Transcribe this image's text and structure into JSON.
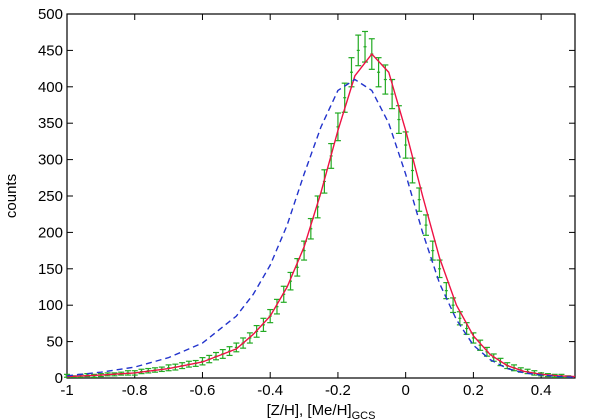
{
  "chart_data": {
    "type": "scatter",
    "xlabel": "[Z/H], [Me/H]",
    "xlabel_subscript": "GCS",
    "ylabel": "counts",
    "xlim": [
      -1,
      0.5
    ],
    "ylim": [
      0,
      500
    ],
    "xticks": [
      -1,
      -0.8,
      -0.6,
      -0.4,
      -0.2,
      0,
      0.2,
      0.4
    ],
    "yticks": [
      0,
      50,
      100,
      150,
      200,
      250,
      300,
      350,
      400,
      450,
      500
    ],
    "series": [
      {
        "style": "errorbar",
        "color": "#22aa22",
        "x": [
          -1,
          -0.98,
          -0.96,
          -0.94,
          -0.92,
          -0.9,
          -0.88,
          -0.86,
          -0.84,
          -0.82,
          -0.8,
          -0.78,
          -0.76,
          -0.74,
          -0.72,
          -0.7,
          -0.68,
          -0.66,
          -0.64,
          -0.62,
          -0.6,
          -0.58,
          -0.56,
          -0.54,
          -0.52,
          -0.5,
          -0.48,
          -0.46,
          -0.44,
          -0.42,
          -0.4,
          -0.38,
          -0.36,
          -0.34,
          -0.32,
          -0.3,
          -0.28,
          -0.26,
          -0.24,
          -0.22,
          -0.2,
          -0.18,
          -0.16,
          -0.14,
          -0.12,
          -0.1,
          -0.08,
          -0.06,
          -0.04,
          -0.02,
          0,
          0.02,
          0.04,
          0.06,
          0.08,
          0.1,
          0.12,
          0.14,
          0.16,
          0.18,
          0.2,
          0.22,
          0.24,
          0.26,
          0.28,
          0.3,
          0.32,
          0.34,
          0.36,
          0.38,
          0.4,
          0.42,
          0.44,
          0.46,
          0.48
        ],
        "values": [
          3,
          2,
          3,
          4,
          3,
          4,
          5,
          5,
          6,
          7,
          7,
          9,
          10,
          11,
          12,
          14,
          15,
          17,
          19,
          20,
          23,
          26,
          30,
          33,
          37,
          42,
          48,
          55,
          64,
          73,
          85,
          98,
          115,
          133,
          152,
          175,
          205,
          235,
          270,
          305,
          345,
          385,
          420,
          450,
          455,
          445,
          420,
          410,
          390,
          355,
          320,
          285,
          245,
          210,
          175,
          150,
          120,
          100,
          82,
          68,
          55,
          45,
          36,
          28,
          22,
          17,
          14,
          11,
          9,
          7,
          5,
          4,
          3,
          3,
          2
        ],
        "errors": [
          2,
          1,
          2,
          2,
          2,
          2,
          2,
          2,
          2,
          3,
          3,
          3,
          3,
          3,
          3,
          4,
          4,
          4,
          4,
          4,
          5,
          5,
          5,
          6,
          6,
          6,
          7,
          7,
          8,
          9,
          9,
          10,
          11,
          12,
          12,
          13,
          14,
          15,
          16,
          17,
          19,
          20,
          20,
          21,
          21,
          21,
          20,
          20,
          20,
          19,
          18,
          17,
          16,
          14,
          13,
          12,
          11,
          10,
          9,
          8,
          7,
          7,
          6,
          5,
          5,
          4,
          4,
          3,
          3,
          3,
          2,
          2,
          2,
          2,
          1
        ]
      },
      {
        "style": "solid",
        "color": "#ee1144",
        "x": [
          -1,
          -0.9,
          -0.8,
          -0.7,
          -0.6,
          -0.5,
          -0.45,
          -0.4,
          -0.35,
          -0.3,
          -0.25,
          -0.2,
          -0.15,
          -0.1,
          -0.05,
          0,
          0.05,
          0.1,
          0.15,
          0.2,
          0.25,
          0.3,
          0.35,
          0.4,
          0.45,
          0.5
        ],
        "values": [
          2,
          4,
          7,
          13,
          22,
          40,
          60,
          85,
          125,
          180,
          255,
          340,
          415,
          445,
          420,
          340,
          250,
          165,
          100,
          58,
          32,
          17,
          9,
          5,
          3,
          2
        ]
      },
      {
        "style": "dashed",
        "color": "#2233cc",
        "x": [
          -1,
          -0.9,
          -0.8,
          -0.7,
          -0.6,
          -0.5,
          -0.45,
          -0.4,
          -0.35,
          -0.3,
          -0.25,
          -0.2,
          -0.15,
          -0.1,
          -0.05,
          0,
          0.05,
          0.1,
          0.15,
          0.2,
          0.25,
          0.3,
          0.35,
          0.4,
          0.45,
          0.5
        ],
        "values": [
          3,
          8,
          15,
          28,
          48,
          85,
          115,
          155,
          210,
          280,
          345,
          395,
          410,
          395,
          350,
          280,
          200,
          130,
          80,
          45,
          25,
          13,
          7,
          4,
          2,
          1
        ]
      }
    ]
  }
}
